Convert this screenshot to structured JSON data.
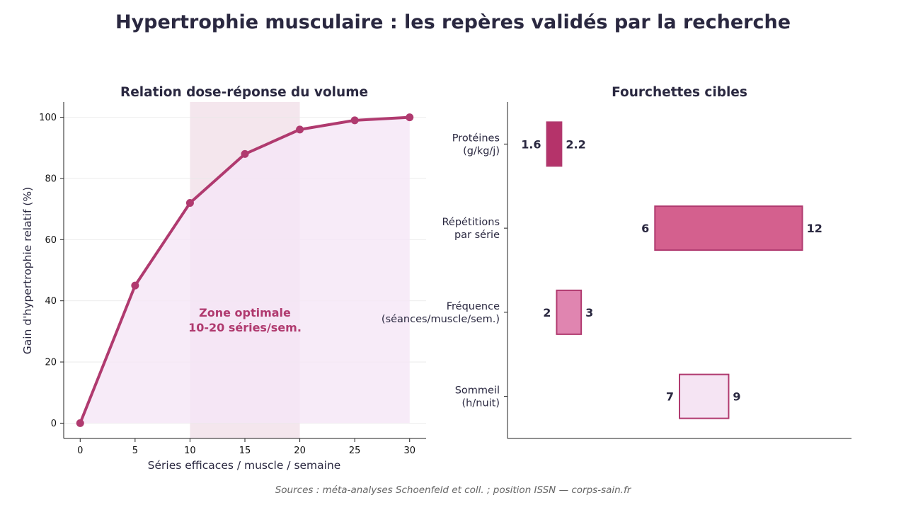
{
  "figure": {
    "title": "Hypertrophie musculaire : les repères validés par la recherche",
    "source": "Sources : méta-analyses Schoenfeld et coll. ; position ISSN — corps-sain.fr"
  },
  "chart_data": [
    {
      "type": "line",
      "title": "Relation dose-réponse du volume",
      "xlabel": "Séries efficaces / muscle / semaine",
      "ylabel": "Gain d'hypertrophie relatif (%)",
      "x": [
        0,
        5,
        10,
        15,
        20,
        25,
        30
      ],
      "series": [
        {
          "values": [
            0,
            45,
            72,
            88,
            96,
            99,
            100
          ]
        }
      ],
      "xticks": [
        0,
        5,
        10,
        15,
        20,
        25,
        30
      ],
      "yticks": [
        0,
        20,
        40,
        60,
        80,
        100
      ],
      "xlim": [
        -1.5,
        31.5
      ],
      "ylim": [
        -5,
        105
      ],
      "grid": "horizontal",
      "filled_area": true,
      "highlight_band": {
        "x_range": [
          10,
          20
        ],
        "label_lines": [
          "Zone optimale",
          "10-20 séries/sem."
        ]
      },
      "colors": {
        "line": "#b03a6f",
        "fill": "#f5e6f6",
        "band": "#f0dce6",
        "label": "#b03a6f"
      }
    },
    {
      "type": "bar",
      "orientation": "horizontal-range",
      "title": "Fourchettes cibles",
      "categories": [
        {
          "lines": [
            "Protéines",
            "(g/kg/j)"
          ],
          "low": 1.6,
          "high": 2.2,
          "low_label": "1.6",
          "high_label": "2.2",
          "color": "#b5336a"
        },
        {
          "lines": [
            "Répétitions",
            "par série"
          ],
          "low": 6,
          "high": 12,
          "low_label": "6",
          "high_label": "12",
          "color": "#d4608e"
        },
        {
          "lines": [
            "Fréquence",
            "(séances/muscle/sem.)"
          ],
          "low": 2,
          "high": 3,
          "low_label": "2",
          "high_label": "3",
          "color": "#e085b0"
        },
        {
          "lines": [
            "Sommeil",
            "(h/nuit)"
          ],
          "low": 7,
          "high": 9,
          "low_label": "7",
          "high_label": "9",
          "color": "#f5e4f3"
        }
      ],
      "xlim": [
        0,
        14
      ],
      "grid": "none",
      "colors": {
        "edge": "#b03a6f"
      }
    }
  ]
}
